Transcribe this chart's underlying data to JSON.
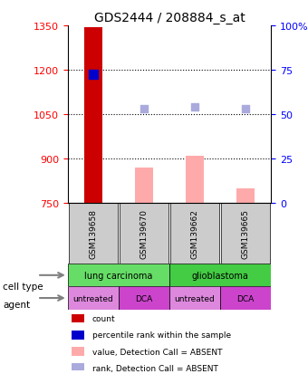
{
  "title": "GDS2444 / 208884_s_at",
  "samples": [
    "GSM139658",
    "GSM139670",
    "GSM139662",
    "GSM139665"
  ],
  "ylim_left": [
    750,
    1350
  ],
  "ylim_right": [
    0,
    100
  ],
  "yticks_left": [
    750,
    900,
    1050,
    1200,
    1350
  ],
  "yticks_right": [
    0,
    25,
    50,
    75,
    100
  ],
  "ytick_labels_right": [
    "0",
    "25",
    "50",
    "75",
    "100%"
  ],
  "bar_values": [
    1345,
    870,
    908,
    800
  ],
  "bar_colors": [
    "#cc0000",
    "#ffaaaa",
    "#ffaaaa",
    "#ffaaaa"
  ],
  "dot_values": [
    1186,
    1068,
    1075,
    1068
  ],
  "dot_colors": [
    "#0000cc",
    "#aaaadd",
    "#aaaadd",
    "#aaaadd"
  ],
  "dot_sizes": [
    20,
    12,
    12,
    12
  ],
  "dot_markers": [
    "s",
    "s",
    "s",
    "s"
  ],
  "cell_types": [
    [
      "lung carcinoma",
      2
    ],
    [
      "glioblastoma",
      2
    ]
  ],
  "cell_type_colors": [
    "#66dd66",
    "#44cc44"
  ],
  "agents": [
    "untreated",
    "DCA",
    "untreated",
    "DCA"
  ],
  "agent_colors": [
    "#dd88dd",
    "#cc44cc",
    "#dd88dd",
    "#cc44cc"
  ],
  "label_area_color": "#dddddd",
  "legend_items": [
    {
      "label": "count",
      "color": "#cc0000",
      "marker": "s"
    },
    {
      "label": "percentile rank within the sample",
      "color": "#0000cc",
      "marker": "s"
    },
    {
      "label": "value, Detection Call = ABSENT",
      "color": "#ffaaaa",
      "marker": "s"
    },
    {
      "label": "rank, Detection Call = ABSENT",
      "color": "#aaaadd",
      "marker": "s"
    }
  ]
}
